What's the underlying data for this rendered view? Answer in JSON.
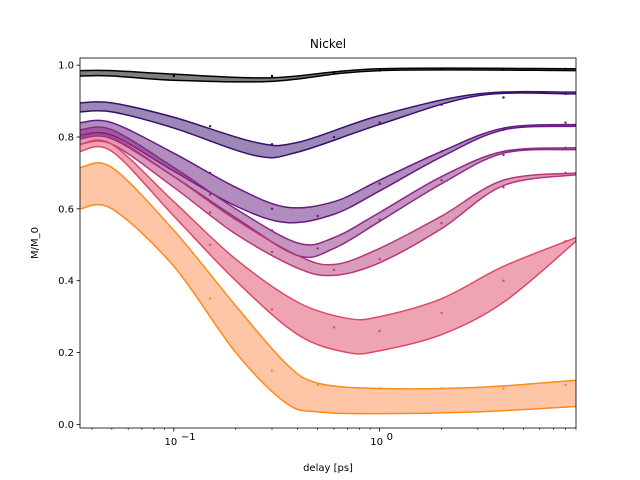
{
  "chart_data": {
    "type": "line",
    "title": "Nickel",
    "xlabel": "delay [ps]",
    "ylabel": "M/M_0",
    "xscale": "log",
    "xlim": [
      0.035,
      9.0
    ],
    "ylim": [
      -0.01,
      1.02
    ],
    "x_ticks": [
      {
        "value": 0.1,
        "base": "10",
        "exp": "−1"
      },
      {
        "value": 1,
        "base": "10",
        "exp": "0"
      }
    ],
    "y_ticks": [
      {
        "value": 0.0,
        "label": "0.0"
      },
      {
        "value": 0.2,
        "label": "0.2"
      },
      {
        "value": 0.4,
        "label": "0.4"
      },
      {
        "value": 0.6,
        "label": "0.6"
      },
      {
        "value": 0.8,
        "label": "0.8"
      },
      {
        "value": 1.0,
        "label": "1.0"
      }
    ],
    "grid": false,
    "legend": "none",
    "series": [
      {
        "color": "#000004",
        "fill": "#000004",
        "fill_opacity": 0.5,
        "upper": [
          [
            0.035,
            0.985
          ],
          [
            0.05,
            0.985
          ],
          [
            0.1,
            0.975
          ],
          [
            0.3,
            0.965
          ],
          [
            1,
            0.99
          ],
          [
            9,
            0.99
          ]
        ],
        "lower": [
          [
            0.035,
            0.97
          ],
          [
            0.05,
            0.97
          ],
          [
            0.1,
            0.958
          ],
          [
            0.3,
            0.955
          ],
          [
            1,
            0.985
          ],
          [
            9,
            0.985
          ]
        ],
        "scatter": [
          [
            0.1,
            0.97
          ],
          [
            0.3,
            0.97
          ],
          [
            0.6,
            0.98
          ],
          [
            1.0,
            0.985
          ],
          [
            2.0,
            0.99
          ],
          [
            4.0,
            0.99
          ],
          [
            8.0,
            0.99
          ]
        ]
      },
      {
        "color": "#3b0f70",
        "fill": "#3b0f70",
        "fill_opacity": 0.5,
        "upper": [
          [
            0.035,
            0.895
          ],
          [
            0.05,
            0.895
          ],
          [
            0.1,
            0.855
          ],
          [
            0.25,
            0.785
          ],
          [
            0.4,
            0.785
          ],
          [
            1,
            0.86
          ],
          [
            3,
            0.92
          ],
          [
            9,
            0.925
          ]
        ],
        "lower": [
          [
            0.035,
            0.87
          ],
          [
            0.05,
            0.87
          ],
          [
            0.1,
            0.825
          ],
          [
            0.25,
            0.748
          ],
          [
            0.4,
            0.758
          ],
          [
            1,
            0.835
          ],
          [
            3,
            0.915
          ],
          [
            9,
            0.92
          ]
        ],
        "scatter": [
          [
            0.15,
            0.83
          ],
          [
            0.3,
            0.78
          ],
          [
            0.6,
            0.8
          ],
          [
            1.0,
            0.84
          ],
          [
            2.0,
            0.89
          ],
          [
            4.0,
            0.91
          ],
          [
            8.0,
            0.92
          ]
        ]
      },
      {
        "color": "#641a80",
        "fill": "#641a80",
        "fill_opacity": 0.5,
        "upper": [
          [
            0.035,
            0.84
          ],
          [
            0.05,
            0.84
          ],
          [
            0.1,
            0.755
          ],
          [
            0.2,
            0.66
          ],
          [
            0.35,
            0.605
          ],
          [
            0.6,
            0.62
          ],
          [
            1,
            0.68
          ],
          [
            2,
            0.76
          ],
          [
            4,
            0.825
          ],
          [
            9,
            0.835
          ]
        ],
        "lower": [
          [
            0.035,
            0.805
          ],
          [
            0.05,
            0.805
          ],
          [
            0.1,
            0.705
          ],
          [
            0.2,
            0.608
          ],
          [
            0.35,
            0.562
          ],
          [
            0.6,
            0.585
          ],
          [
            1,
            0.65
          ],
          [
            2,
            0.745
          ],
          [
            4,
            0.82
          ],
          [
            9,
            0.83
          ]
        ],
        "scatter": [
          [
            0.15,
            0.7
          ],
          [
            0.3,
            0.6
          ],
          [
            0.5,
            0.58
          ],
          [
            1.0,
            0.67
          ],
          [
            2.0,
            0.76
          ],
          [
            4.0,
            0.82
          ],
          [
            8.0,
            0.84
          ]
        ]
      },
      {
        "color": "#8c2981",
        "fill": "#8c2981",
        "fill_opacity": 0.5,
        "upper": [
          [
            0.035,
            0.82
          ],
          [
            0.05,
            0.82
          ],
          [
            0.1,
            0.715
          ],
          [
            0.2,
            0.6
          ],
          [
            0.4,
            0.505
          ],
          [
            0.6,
            0.52
          ],
          [
            1,
            0.59
          ],
          [
            2,
            0.69
          ],
          [
            4,
            0.76
          ],
          [
            9,
            0.77
          ]
        ],
        "lower": [
          [
            0.035,
            0.795
          ],
          [
            0.05,
            0.795
          ],
          [
            0.1,
            0.69
          ],
          [
            0.2,
            0.575
          ],
          [
            0.4,
            0.47
          ],
          [
            0.6,
            0.49
          ],
          [
            1,
            0.565
          ],
          [
            2,
            0.67
          ],
          [
            4,
            0.755
          ],
          [
            9,
            0.765
          ]
        ],
        "scatter": [
          [
            0.15,
            0.64
          ],
          [
            0.3,
            0.54
          ],
          [
            0.5,
            0.49
          ],
          [
            1.0,
            0.57
          ],
          [
            2.0,
            0.68
          ],
          [
            4.0,
            0.75
          ],
          [
            8.0,
            0.77
          ]
        ]
      },
      {
        "color": "#b73779",
        "fill": "#b73779",
        "fill_opacity": 0.5,
        "upper": [
          [
            0.035,
            0.8
          ],
          [
            0.05,
            0.8
          ],
          [
            0.1,
            0.69
          ],
          [
            0.2,
            0.57
          ],
          [
            0.4,
            0.47
          ],
          [
            0.6,
            0.445
          ],
          [
            1,
            0.49
          ],
          [
            2,
            0.58
          ],
          [
            4,
            0.68
          ],
          [
            9,
            0.7
          ]
        ],
        "lower": [
          [
            0.035,
            0.78
          ],
          [
            0.05,
            0.78
          ],
          [
            0.1,
            0.66
          ],
          [
            0.2,
            0.53
          ],
          [
            0.4,
            0.435
          ],
          [
            0.6,
            0.415
          ],
          [
            1,
            0.45
          ],
          [
            2,
            0.545
          ],
          [
            4,
            0.665
          ],
          [
            9,
            0.695
          ]
        ],
        "scatter": [
          [
            0.15,
            0.59
          ],
          [
            0.3,
            0.48
          ],
          [
            0.6,
            0.43
          ],
          [
            1.0,
            0.46
          ],
          [
            2.0,
            0.56
          ],
          [
            4.0,
            0.66
          ],
          [
            8.0,
            0.7
          ]
        ]
      },
      {
        "color": "#de4968",
        "fill": "#de4968",
        "fill_opacity": 0.5,
        "upper": [
          [
            0.035,
            0.78
          ],
          [
            0.05,
            0.78
          ],
          [
            0.1,
            0.62
          ],
          [
            0.2,
            0.46
          ],
          [
            0.4,
            0.34
          ],
          [
            0.7,
            0.295
          ],
          [
            1,
            0.3
          ],
          [
            2,
            0.35
          ],
          [
            4,
            0.44
          ],
          [
            9,
            0.52
          ]
        ],
        "lower": [
          [
            0.035,
            0.76
          ],
          [
            0.05,
            0.76
          ],
          [
            0.1,
            0.58
          ],
          [
            0.2,
            0.4
          ],
          [
            0.4,
            0.25
          ],
          [
            0.7,
            0.2
          ],
          [
            1,
            0.205
          ],
          [
            2,
            0.25
          ],
          [
            4,
            0.34
          ],
          [
            9,
            0.51
          ]
        ],
        "scatter": [
          [
            0.15,
            0.5
          ],
          [
            0.3,
            0.32
          ],
          [
            0.6,
            0.27
          ],
          [
            1.0,
            0.26
          ],
          [
            2.0,
            0.31
          ],
          [
            4.0,
            0.4
          ],
          [
            8.0,
            0.51
          ]
        ]
      },
      {
        "color": "#fe8a1a",
        "fill": "#fe9f6d",
        "fill_opacity": 0.6,
        "upper": [
          [
            0.035,
            0.715
          ],
          [
            0.05,
            0.715
          ],
          [
            0.1,
            0.54
          ],
          [
            0.2,
            0.33
          ],
          [
            0.35,
            0.17
          ],
          [
            0.5,
            0.115
          ],
          [
            1,
            0.1
          ],
          [
            3,
            0.103
          ],
          [
            9,
            0.123
          ]
        ],
        "lower": [
          [
            0.035,
            0.6
          ],
          [
            0.05,
            0.6
          ],
          [
            0.1,
            0.44
          ],
          [
            0.2,
            0.2
          ],
          [
            0.35,
            0.06
          ],
          [
            0.5,
            0.035
          ],
          [
            1,
            0.03
          ],
          [
            3,
            0.035
          ],
          [
            9,
            0.05
          ]
        ],
        "scatter": [
          [
            0.15,
            0.35
          ],
          [
            0.3,
            0.15
          ],
          [
            0.5,
            0.11
          ],
          [
            1.0,
            0.1
          ],
          [
            2.0,
            0.1
          ],
          [
            4.0,
            0.1
          ],
          [
            8.0,
            0.11
          ]
        ]
      }
    ]
  }
}
